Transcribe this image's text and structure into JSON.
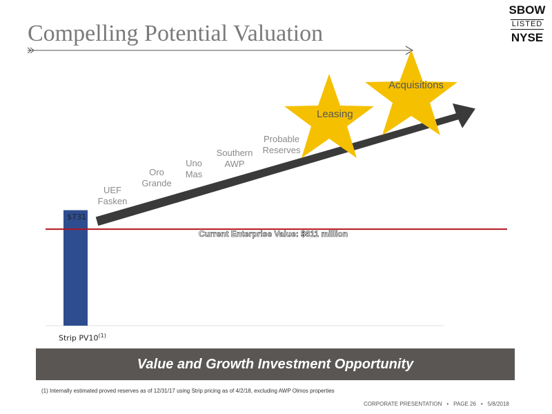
{
  "title": "Compelling Potential Valuation",
  "logo": {
    "line1": "SBOW",
    "line2": "LISTED",
    "line3": "NYSE"
  },
  "growth_labels": [
    {
      "text": "UEF\nFasken"
    },
    {
      "text": "Oro\nGrande"
    },
    {
      "text": "Uno\nMas"
    },
    {
      "text": "Southern\nAWP"
    },
    {
      "text": "Probable\nReserves"
    }
  ],
  "stars": [
    {
      "label": "Leasing"
    },
    {
      "label": "Acquisitions"
    }
  ],
  "chart_data": {
    "type": "bar",
    "categories": [
      "Strip PV10"
    ],
    "category_superscript": "(1)",
    "values": [
      731
    ],
    "value_labels": [
      "$731"
    ],
    "reference_line": {
      "label": "Current Enterprise Value: $611 million",
      "value": 611
    },
    "ylim": [
      0,
      1000
    ],
    "colors": {
      "bar": "#2e4d8f",
      "reference_line": "#b5121b",
      "arrow": "#3a3a3a",
      "star": "#f5c000"
    }
  },
  "banner": "Value and Growth Investment Opportunity",
  "footnote": "(1)   Internally estimated proved reserves as of 12/31/17 using Strip pricing as of 4/2/18, excluding AWP Olmos properties",
  "footer": {
    "section": "CORPORATE PRESENTATION",
    "page": "PAGE 26",
    "date": "5/8/2018",
    "separator": "•"
  }
}
